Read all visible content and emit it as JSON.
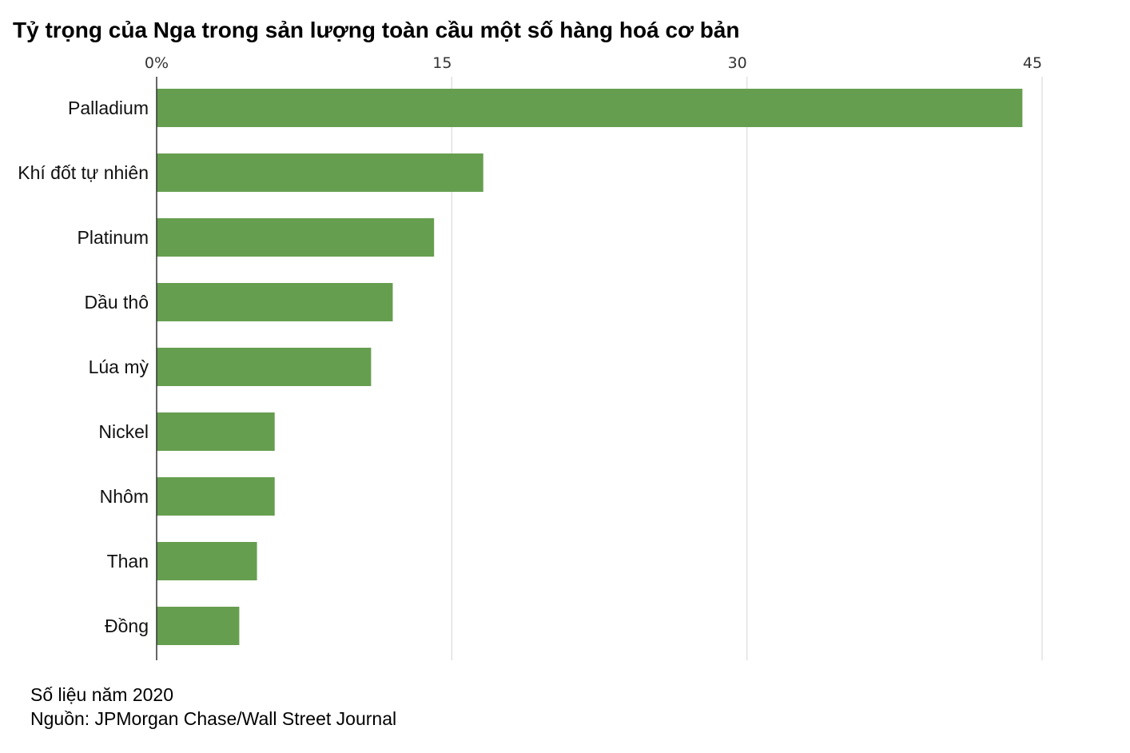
{
  "title": "Tỷ trọng của Nga trong sản lượng toàn cầu một số hàng hoá cơ bản",
  "footnote": {
    "year": "Số liệu năm 2020",
    "source": "Nguồn: JPMorgan Chase/Wall Street Journal"
  },
  "colors": {
    "bar": "#669e4f",
    "grid": "#e2e2e2",
    "axis": "#333333"
  },
  "chart_data": {
    "type": "bar",
    "orientation": "horizontal",
    "categories": [
      "Palladium",
      "Khí đốt tự nhiên",
      "Platinum",
      "Dầu thô",
      "Lúa mỳ",
      "Nickel",
      "Nhôm",
      "Than",
      "Đồng"
    ],
    "values": [
      44,
      16.6,
      14.1,
      12.0,
      10.9,
      6.0,
      6.0,
      5.1,
      4.2
    ],
    "ticks": [
      0,
      15,
      30,
      45
    ],
    "tick_labels": [
      "0%",
      "15",
      "30",
      "45"
    ],
    "xlim": [
      0,
      45
    ],
    "grid": true,
    "xaxis_position": "top",
    "title": "Tỷ trọng của Nga trong sản lượng toàn cầu một số hàng hoá cơ bản"
  }
}
